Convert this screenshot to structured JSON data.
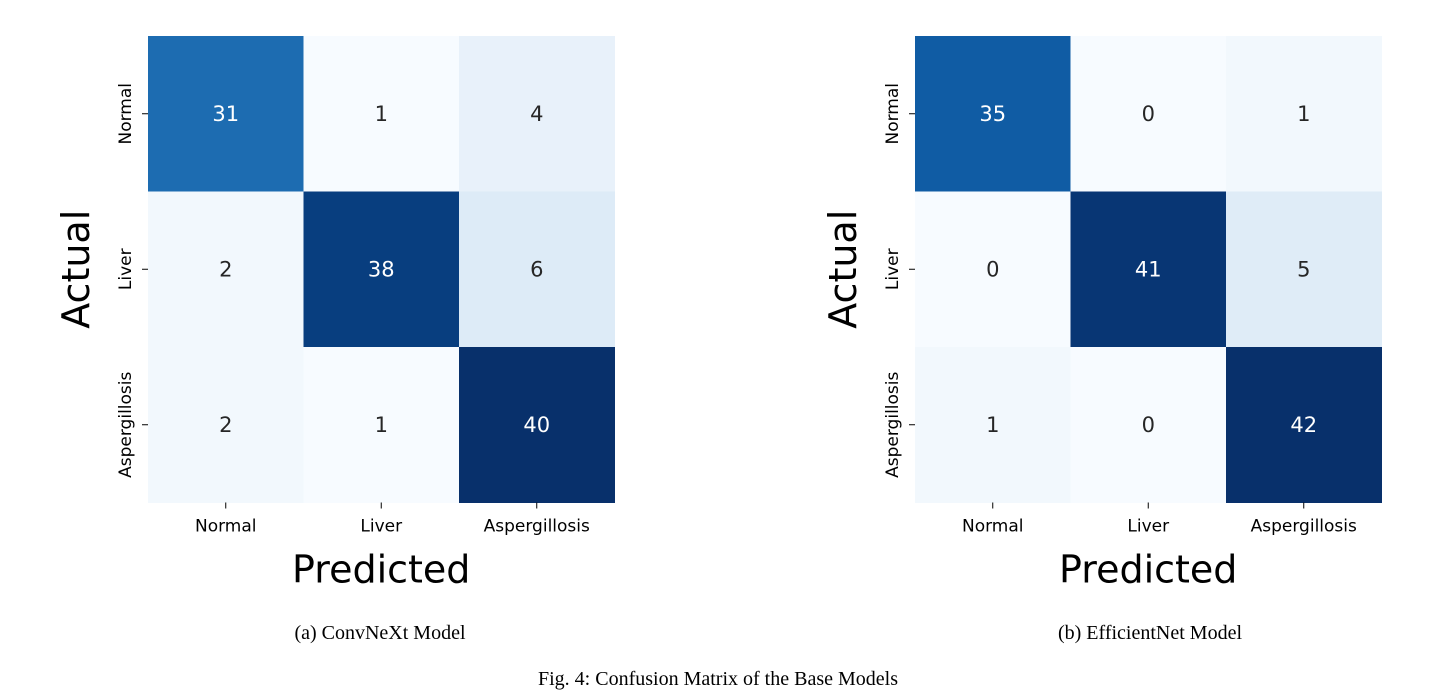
{
  "chart_data": [
    {
      "type": "heatmap",
      "caption": "(a) ConvNeXt Model",
      "xlabel": "Predicted",
      "ylabel": "Actual",
      "x_categories": [
        "Normal",
        "Liver",
        "Aspergillosis"
      ],
      "y_categories": [
        "Normal",
        "Liver",
        "Aspergillosis"
      ],
      "values": [
        [
          31,
          1,
          4
        ],
        [
          2,
          38,
          6
        ],
        [
          2,
          1,
          40
        ]
      ],
      "colormap": "Blues",
      "colorbar": false
    },
    {
      "type": "heatmap",
      "caption": "(b) EfficientNet Model",
      "xlabel": "Predicted",
      "ylabel": "Actual",
      "x_categories": [
        "Normal",
        "Liver",
        "Aspergillosis"
      ],
      "y_categories": [
        "Normal",
        "Liver",
        "Aspergillosis"
      ],
      "values": [
        [
          35,
          0,
          1
        ],
        [
          0,
          41,
          5
        ],
        [
          1,
          0,
          42
        ]
      ],
      "colormap": "Blues",
      "colorbar": false
    }
  ],
  "figure_caption": "Fig. 4: Confusion Matrix of the Base Models"
}
